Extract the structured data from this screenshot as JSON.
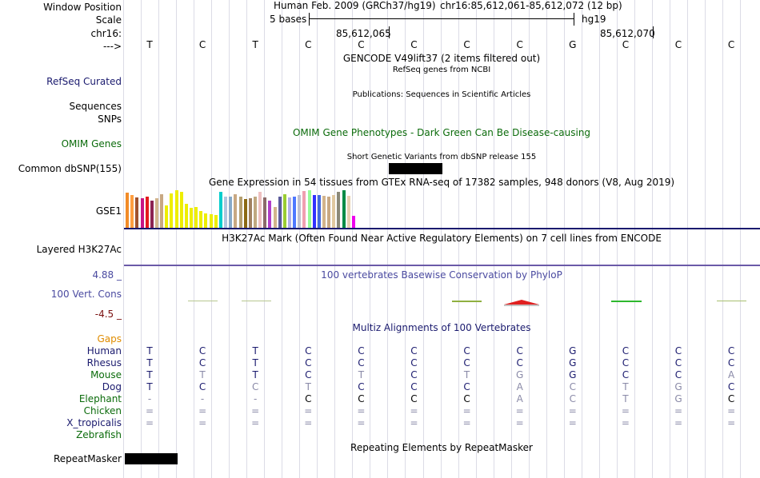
{
  "labels": {
    "window_position": "Window Position",
    "scale": "Scale",
    "chrom": "chr16:",
    "strand": "--->",
    "refseq": "RefSeq Curated",
    "sequences": "Sequences",
    "snps": "SNPs",
    "omim": "OMIM Genes",
    "dbsnp": "Common dbSNP(155)",
    "gse1": "GSE1",
    "h3k27ac": "Layered H3K27Ac",
    "cons_max": "4.88 _",
    "cons": "100 Vert. Cons",
    "cons_min": "-4.5 _",
    "gaps": "Gaps",
    "species": [
      "Human",
      "Rhesus",
      "Mouse",
      "Dog",
      "Elephant",
      "Chicken",
      "X_tropicalis",
      "Zebrafish"
    ],
    "repeatmasker": "RepeatMasker"
  },
  "colors": {
    "navy": "#1a1a6e",
    "green": "#0b6b0b",
    "orange": "#e08c00",
    "dark_red": "#7a1010",
    "cons_blue": "#4a4aa0",
    "grey_base": "#8a8aa8"
  },
  "header": {
    "assembly": "Human Feb. 2009 (GRCh37/hg19)",
    "position": "chr16:85,612,061-85,612,072 (12 bp)",
    "scale_text": "5 bases",
    "scale_db": "hg19",
    "coord_left": "85,612,065",
    "coord_right": "85,612,070"
  },
  "bases": [
    "T",
    "C",
    "T",
    "C",
    "C",
    "C",
    "C",
    "C",
    "G",
    "C",
    "C",
    "C"
  ],
  "tracks": {
    "gencode": "GENCODE V49lift37 (2 items filtered out)",
    "refseq": "RefSeq genes from NCBI",
    "publications": "Publications: Sequences in Scientific Articles",
    "omim": "OMIM Gene Phenotypes - Dark Green Can Be Disease-causing",
    "dbsnp": "Short Genetic Variants from dbSNP release 155",
    "gtex": "Gene Expression in 54 tissues from GTEx RNA-seq of 17382 samples, 948 donors (V8, Aug 2019)",
    "h3k27ac": "H3K27Ac Mark (Often Found Near Active Regulatory Elements) on 7 cell lines from ENCODE",
    "cons": "100 vertebrates Basewise Conservation by PhyloP",
    "multiz": "Multiz Alignments of 100 Vertebrates",
    "repeatmasker": "Repeating Elements by RepeatMasker"
  },
  "gtex_bars": [
    {
      "color": "#f28c28",
      "value": 0.94
    },
    {
      "color": "#ff9f40",
      "value": 0.88
    },
    {
      "color": "#a0522d",
      "value": 0.8
    },
    {
      "color": "#c71585",
      "value": 0.78
    },
    {
      "color": "#e41a1c",
      "value": 0.84
    },
    {
      "color": "#8b2252",
      "value": 0.72
    },
    {
      "color": "#d2b48c",
      "value": 0.78
    },
    {
      "color": "#c8a882",
      "value": 0.9
    },
    {
      "color": "#eeee00",
      "value": 0.6
    },
    {
      "color": "#eeee00",
      "value": 0.92
    },
    {
      "color": "#eeee00",
      "value": 1.0
    },
    {
      "color": "#eeee00",
      "value": 0.96
    },
    {
      "color": "#eeee00",
      "value": 0.63
    },
    {
      "color": "#eeee00",
      "value": 0.54
    },
    {
      "color": "#eeee00",
      "value": 0.56
    },
    {
      "color": "#eeee00",
      "value": 0.44
    },
    {
      "color": "#eeee00",
      "value": 0.38
    },
    {
      "color": "#eeee00",
      "value": 0.36
    },
    {
      "color": "#eeee00",
      "value": 0.34
    },
    {
      "color": "#00cdcd",
      "value": 0.96
    },
    {
      "color": "#b0c4de",
      "value": 0.84
    },
    {
      "color": "#87a9c8",
      "value": 0.82
    },
    {
      "color": "#c8a882",
      "value": 0.9
    },
    {
      "color": "#b5a070",
      "value": 0.84
    },
    {
      "color": "#8b6914",
      "value": 0.76
    },
    {
      "color": "#a08060",
      "value": 0.78
    },
    {
      "color": "#c0a880",
      "value": 0.82
    },
    {
      "color": "#eec0c0",
      "value": 0.96
    },
    {
      "color": "#8b6969",
      "value": 0.8
    },
    {
      "color": "#b03cc8",
      "value": 0.72
    },
    {
      "color": "#d2b48c",
      "value": 0.56
    },
    {
      "color": "#5a5a9a",
      "value": 0.82
    },
    {
      "color": "#9acd32",
      "value": 0.9
    },
    {
      "color": "#b0b0e8",
      "value": 0.8
    },
    {
      "color": "#4f78ff",
      "value": 0.84
    },
    {
      "color": "#c0c0d0",
      "value": 0.88
    },
    {
      "color": "#f0a0b0",
      "value": 0.98
    },
    {
      "color": "#98fb98",
      "value": 1.0
    },
    {
      "color": "#3030ff",
      "value": 0.88
    },
    {
      "color": "#4169e1",
      "value": 0.88
    },
    {
      "color": "#d2b48c",
      "value": 0.86
    },
    {
      "color": "#c8a882",
      "value": 0.84
    },
    {
      "color": "#e0c8a0",
      "value": 0.88
    },
    {
      "color": "#8b8878",
      "value": 0.96
    },
    {
      "color": "#008b45",
      "value": 1.0
    },
    {
      "color": "#e8d0b0",
      "value": 0.86
    },
    {
      "color": "#ee00ee",
      "value": 0.32
    }
  ],
  "alignments": [
    [
      "T",
      "C",
      "T",
      "C",
      "C",
      "C",
      "C",
      "C",
      "G",
      "C",
      "C",
      "C"
    ],
    [
      "T",
      "C",
      "T",
      "C",
      "C",
      "C",
      "C",
      "C",
      "G",
      "C",
      "C",
      "C"
    ],
    [
      "T",
      "T",
      "T",
      "C",
      "T",
      "C",
      "T",
      "G",
      "G",
      "C",
      "C",
      "A"
    ],
    [
      "T",
      "C",
      "C",
      "T",
      "C",
      "C",
      "C",
      "A",
      "C",
      "T",
      "G",
      "C"
    ],
    [
      "-",
      "-",
      "-",
      "C",
      "C",
      "C",
      "C",
      "A",
      "C",
      "T",
      "G",
      "C"
    ],
    [
      "=",
      "=",
      "=",
      "=",
      "=",
      "=",
      "=",
      "=",
      "=",
      "=",
      "=",
      "="
    ],
    [
      "=",
      "=",
      "=",
      "=",
      "=",
      "=",
      "=",
      "=",
      "=",
      "=",
      "=",
      "="
    ],
    [
      "",
      "",
      "",
      "",
      "",
      "",
      "",
      "",
      "",
      "",
      "",
      ""
    ]
  ],
  "alignment_dim": [
    [
      0,
      0,
      0,
      0,
      0,
      0,
      0,
      0,
      0,
      0,
      0,
      0
    ],
    [
      0,
      0,
      0,
      0,
      0,
      0,
      0,
      0,
      0,
      0,
      0,
      0
    ],
    [
      0,
      1,
      0,
      0,
      1,
      0,
      1,
      1,
      0,
      0,
      0,
      1
    ],
    [
      0,
      0,
      1,
      1,
      0,
      0,
      0,
      1,
      1,
      1,
      1,
      0
    ],
    [
      1,
      1,
      1,
      0,
      0,
      0,
      0,
      1,
      1,
      1,
      1,
      0
    ],
    [
      1,
      1,
      1,
      1,
      1,
      1,
      1,
      1,
      1,
      1,
      1,
      1
    ],
    [
      1,
      1,
      1,
      1,
      1,
      1,
      1,
      1,
      1,
      1,
      1,
      1
    ],
    [
      0,
      0,
      0,
      0,
      0,
      0,
      0,
      0,
      0,
      0,
      0,
      0
    ]
  ]
}
